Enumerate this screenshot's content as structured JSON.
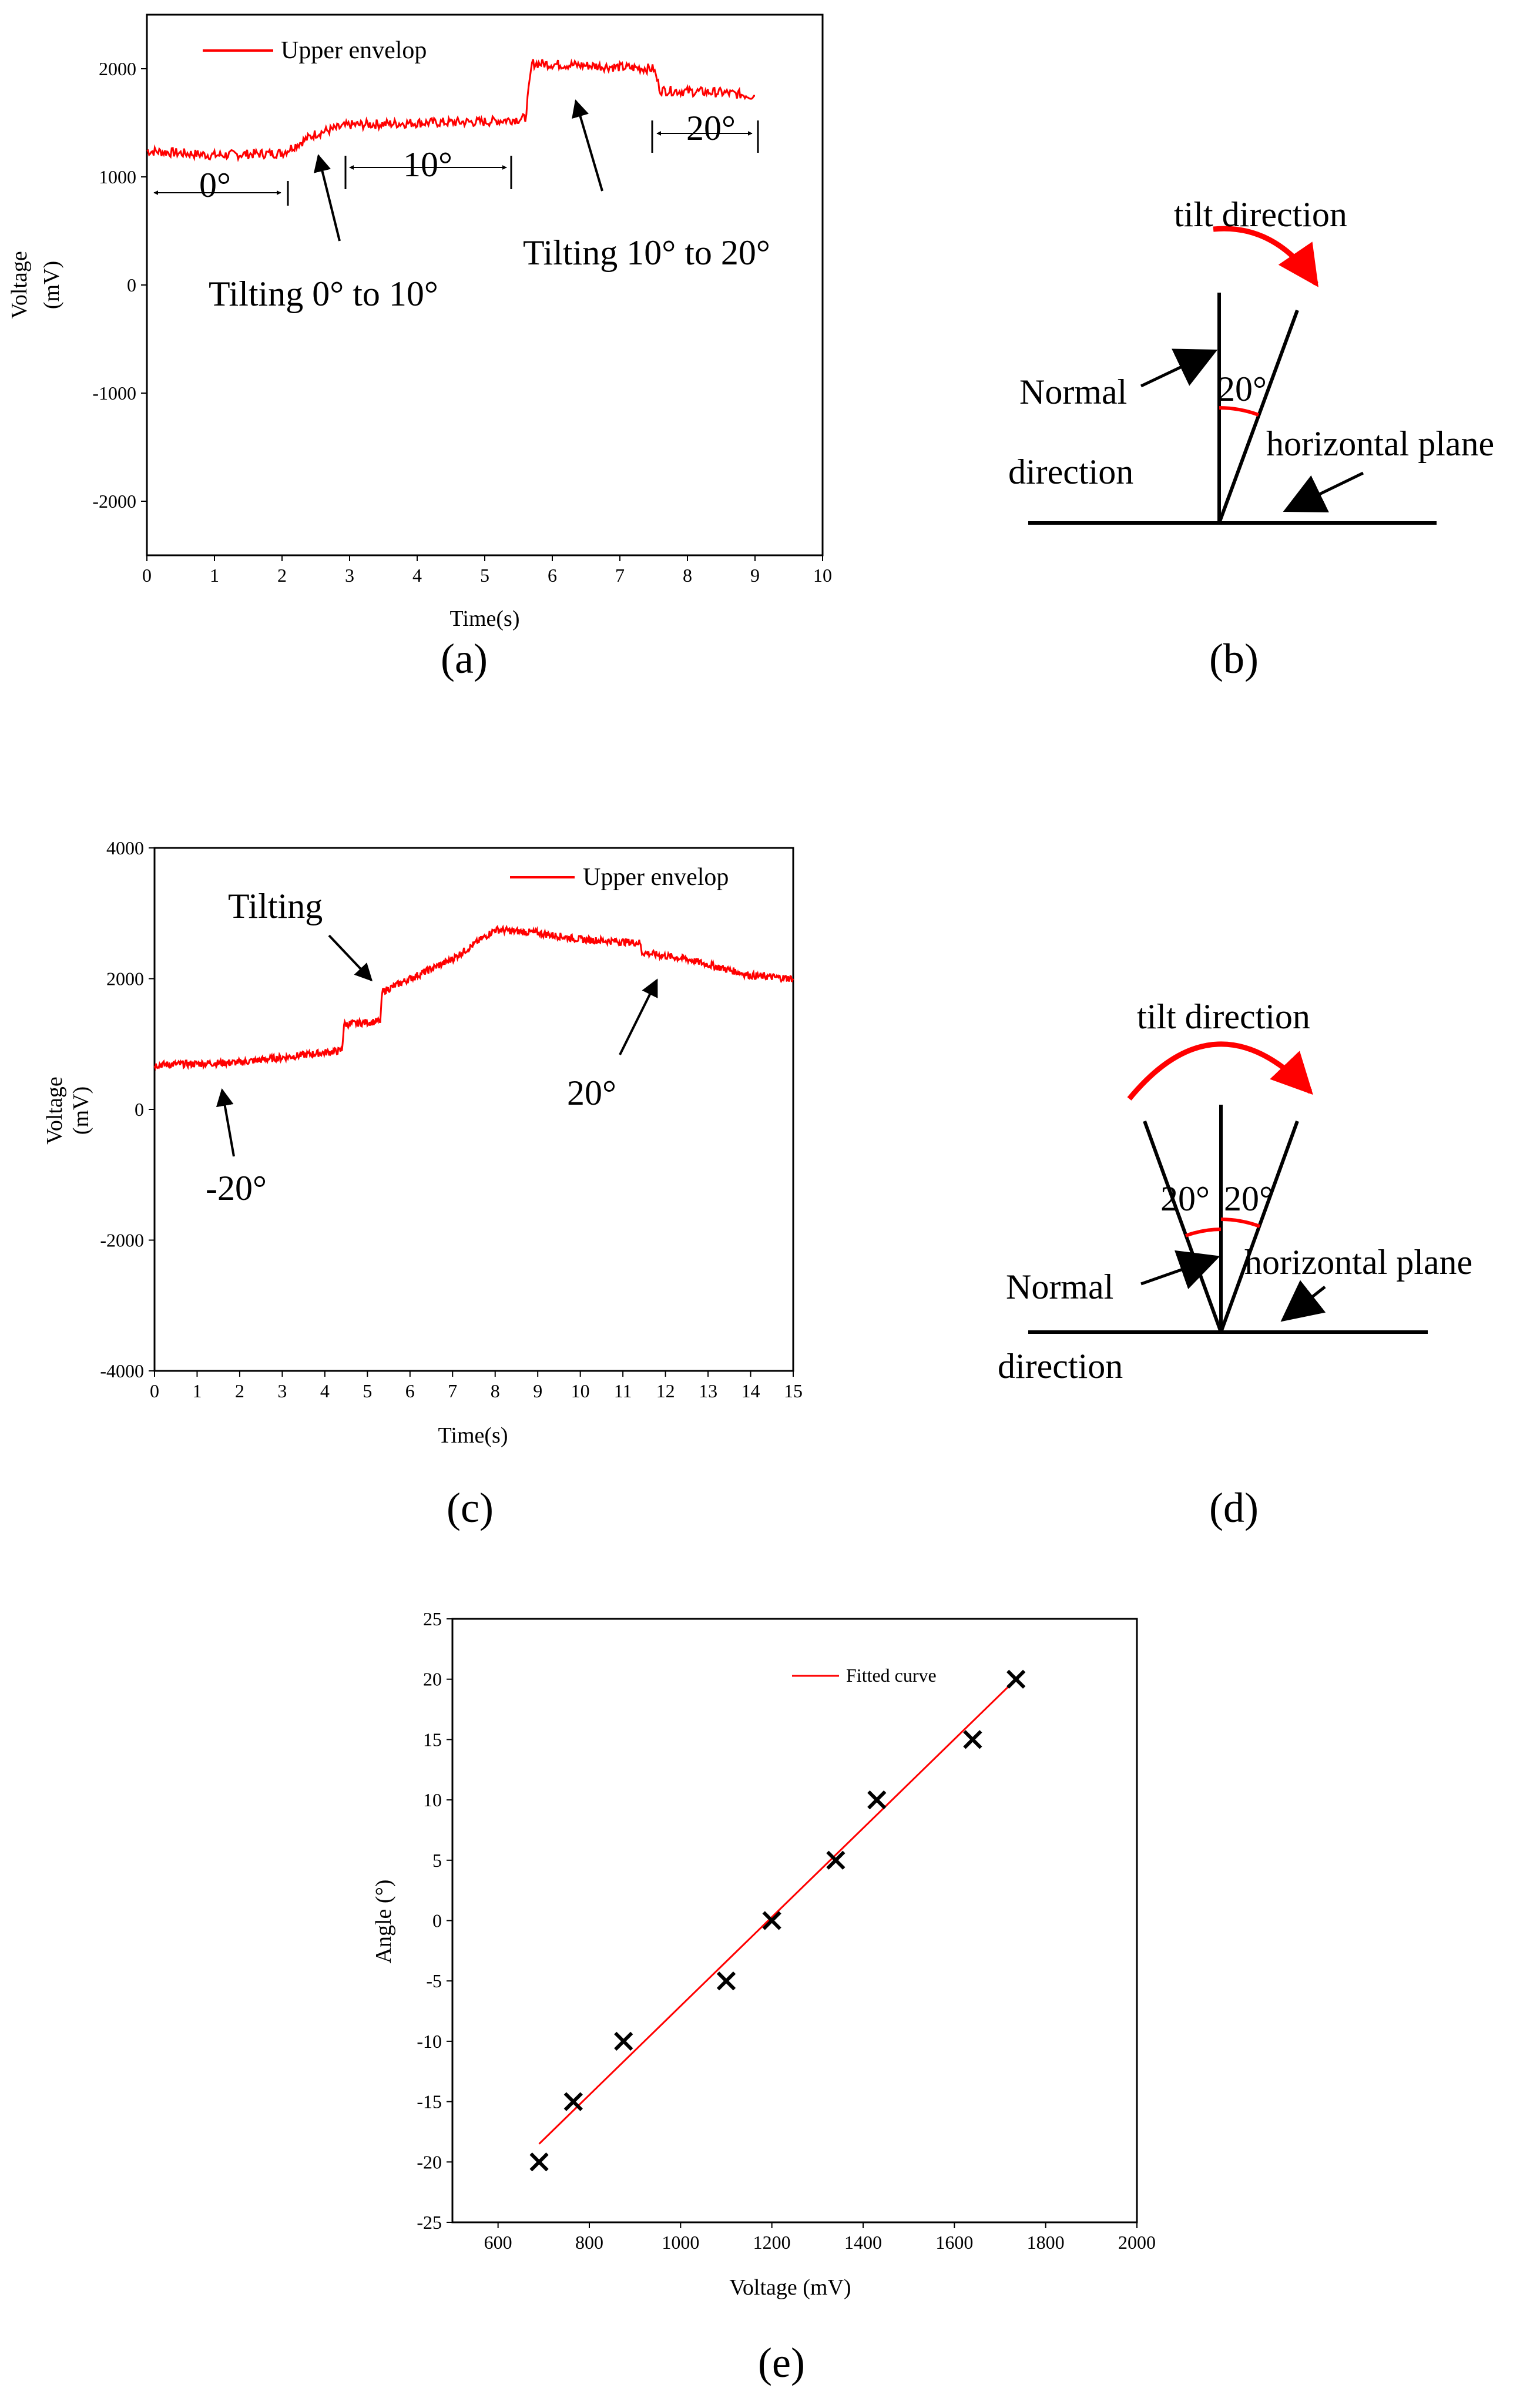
{
  "colors": {
    "series": "#ff0000",
    "axis": "#000000",
    "background": "#ffffff"
  },
  "panels": {
    "a": {
      "caption": "(a)",
      "ann_tilt1": "Tilting 0° to 10°",
      "ann_tilt2": "Tilting 10° to 20°",
      "seg0": "0°",
      "seg10": "10°",
      "seg20": "20°"
    },
    "b": {
      "caption": "(b)",
      "tilt_direction": "tilt direction",
      "normal": "Normal",
      "direction": "direction",
      "angle": "20°",
      "horizontal_plane": "horizontal plane"
    },
    "c": {
      "caption": "(c)",
      "ann_tilting": "Tilting",
      "ann_neg20": "-20°",
      "ann_20": "20°"
    },
    "d": {
      "caption": "(d)",
      "tilt_direction": "tilt direction",
      "normal": "Normal",
      "direction": "direction",
      "angle_left": "20°",
      "angle_right": "20°",
      "horizontal_plane": "horizontal plane"
    },
    "e": {
      "caption": "(e)"
    }
  },
  "chart_data": [
    {
      "id": "a",
      "type": "line",
      "title": "",
      "xlabel": "Time(s)",
      "ylabel": "Voltage",
      "ylabel_unit": "(mV)",
      "xlim": [
        0,
        10
      ],
      "ylim": [
        -2500,
        2500
      ],
      "xticks": [
        0,
        1,
        2,
        3,
        4,
        5,
        6,
        7,
        8,
        9,
        10
      ],
      "yticks": [
        -2000,
        -1000,
        0,
        1000,
        2000
      ],
      "legend": "Upper envelop",
      "series": [
        {
          "name": "Upper envelop",
          "x": [
            0,
            1,
            2,
            2.5,
            3,
            4,
            5,
            5.6,
            5.7,
            6.5,
            7.5,
            7.6,
            8.5,
            9
          ],
          "y": [
            1240,
            1200,
            1220,
            1400,
            1480,
            1500,
            1510,
            1540,
            2050,
            2030,
            2000,
            1800,
            1780,
            1750
          ]
        }
      ]
    },
    {
      "id": "c",
      "type": "line",
      "title": "",
      "xlabel": "Time(s)",
      "ylabel": "Voltage",
      "ylabel_unit": "(mV)",
      "xlim": [
        0,
        15
      ],
      "ylim": [
        -4000,
        4000
      ],
      "xticks": [
        0,
        1,
        2,
        3,
        4,
        5,
        6,
        7,
        8,
        9,
        10,
        11,
        12,
        13,
        14,
        15
      ],
      "yticks": [
        -4000,
        -2000,
        0,
        2000,
        4000
      ],
      "legend": "Upper envelop",
      "series": [
        {
          "name": "Upper envelop",
          "x": [
            0,
            2,
            4.4,
            4.45,
            5.3,
            5.35,
            6,
            7,
            8,
            9,
            10,
            11.4,
            11.45,
            12.5,
            14,
            15
          ],
          "y": [
            680,
            720,
            900,
            1300,
            1350,
            1800,
            2000,
            2300,
            2750,
            2700,
            2600,
            2550,
            2400,
            2300,
            2050,
            2000
          ]
        }
      ]
    },
    {
      "id": "e",
      "type": "scatter",
      "title": "",
      "xlabel": "Voltage (mV)",
      "ylabel": "Angle (°)",
      "xlim": [
        500,
        2000
      ],
      "ylim": [
        -25,
        25
      ],
      "xticks": [
        600,
        800,
        1000,
        1200,
        1400,
        1600,
        1800,
        2000
      ],
      "yticks": [
        -25,
        -20,
        -15,
        -10,
        -5,
        0,
        5,
        10,
        15,
        20,
        25
      ],
      "legend": "Fitted curve",
      "points": {
        "x": [
          690,
          765,
          875,
          1100,
          1200,
          1340,
          1430,
          1640,
          1735
        ],
        "y": [
          -20,
          -15,
          -10,
          -5,
          0,
          5,
          10,
          15,
          20
        ]
      },
      "fit": {
        "x": [
          690,
          1735
        ],
        "y": [
          -18.5,
          20
        ]
      }
    }
  ]
}
